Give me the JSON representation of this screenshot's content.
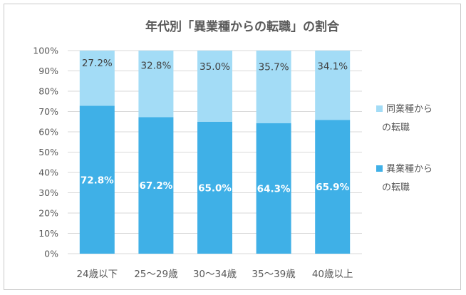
{
  "chart_data": {
    "type": "bar",
    "stacked": true,
    "title": "年代別「異業種からの転職」の割合",
    "categories": [
      "24歳以下",
      "25～29歳",
      "30～34歳",
      "35～39歳",
      "40歳以上"
    ],
    "series": [
      {
        "name": "異業種からの転職",
        "name_lines": [
          "異業種から",
          "の転職"
        ],
        "values": [
          72.8,
          67.2,
          65.0,
          64.3,
          65.9
        ],
        "labels": [
          "72.8%",
          "67.2%",
          "65.0%",
          "64.3%",
          "65.9%"
        ],
        "color": "#3fb0e7"
      },
      {
        "name": "同業種からの転職",
        "name_lines": [
          "同業種から",
          "の転職"
        ],
        "values": [
          27.2,
          32.8,
          35.0,
          35.7,
          34.1
        ],
        "labels": [
          "27.2%",
          "32.8%",
          "35.0%",
          "35.7%",
          "34.1%"
        ],
        "color": "#a3dcf6"
      }
    ],
    "ylim": [
      0,
      100
    ],
    "yticks": [
      "0%",
      "10%",
      "20%",
      "30%",
      "40%",
      "50%",
      "60%",
      "70%",
      "80%",
      "90%",
      "100%"
    ],
    "grid": true,
    "legend_position": "right"
  }
}
